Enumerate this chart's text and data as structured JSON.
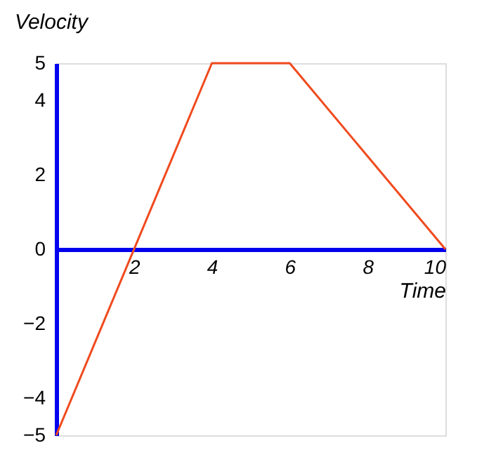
{
  "chart_data": {
    "type": "line",
    "xlabel": "Time",
    "ylabel": "Velocity",
    "x": [
      0,
      4,
      6,
      10
    ],
    "series": [
      {
        "color": "#f04a1e",
        "values": [
          -5,
          5,
          5,
          0
        ]
      }
    ],
    "xlim": [
      0,
      10
    ],
    "xticks": [
      2,
      4,
      6,
      8,
      10
    ],
    "ylim": [
      -5,
      5
    ],
    "yticks": [
      -5,
      -4,
      -2,
      0,
      2,
      4,
      5
    ],
    "grid": false,
    "legend": false,
    "marker": "none",
    "line_style": "solid"
  }
}
